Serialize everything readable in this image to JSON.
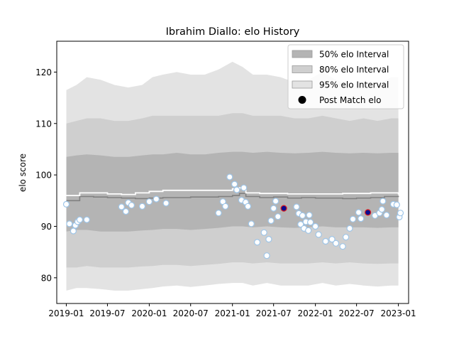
{
  "chart_data": {
    "type": "area",
    "title": "Ibrahim Diallo: elo History",
    "xlabel": "",
    "ylabel": "elo score",
    "xlim": [
      "2018-11-20",
      "2023-02-15"
    ],
    "ylim": [
      75,
      126
    ],
    "x_ticks": [
      "2019-01",
      "2019-07",
      "2020-01",
      "2020-07",
      "2021-01",
      "2021-07",
      "2022-01",
      "2022-07",
      "2023-01"
    ],
    "y_ticks": [
      80,
      90,
      100,
      110,
      120
    ],
    "grid": false,
    "legend_position": "top-right",
    "colors": {
      "band50": "#b4b4b4",
      "band80": "#cfcfcf",
      "band95": "#e3e3e3",
      "median_line": "#808080",
      "mean_line": "#ffffff",
      "point_fill": "#ffffff",
      "point_edge": "#9ec5e8",
      "highlight_fill": "#0a0a90",
      "highlight_edge": "#e02020"
    },
    "legend": [
      {
        "label": "50% elo Interval",
        "kind": "band50"
      },
      {
        "label": "80% elo Interval",
        "kind": "band80"
      },
      {
        "label": "95% elo Interval",
        "kind": "band95"
      },
      {
        "label": "Post Match elo",
        "kind": "marker"
      }
    ],
    "band_x": [
      "2019-01-01",
      "2019-02-15",
      "2019-04-01",
      "2019-06-01",
      "2019-08-01",
      "2019-10-01",
      "2019-12-01",
      "2020-01-15",
      "2020-03-01",
      "2020-05-01",
      "2020-07-01",
      "2020-09-01",
      "2020-11-01",
      "2021-01-01",
      "2021-02-15",
      "2021-04-01",
      "2021-06-01",
      "2021-08-01",
      "2021-10-01",
      "2021-12-01",
      "2022-02-01",
      "2022-04-01",
      "2022-06-01",
      "2022-08-01",
      "2022-10-01",
      "2022-12-01",
      "2023-01-01"
    ],
    "band95_upper": [
      116.5,
      117.5,
      119,
      118.5,
      117.5,
      117,
      117.5,
      119,
      119.5,
      120,
      119.5,
      119.5,
      120.5,
      122,
      121,
      119.5,
      119.5,
      119,
      118,
      118.5,
      120,
      118.5,
      117.5,
      118,
      117.5,
      119,
      119
    ],
    "band95_lower": [
      77.5,
      78,
      78,
      77.8,
      77.5,
      77.5,
      77.8,
      78,
      78.3,
      78.5,
      78.2,
      78.5,
      78.8,
      79,
      79,
      78.5,
      79,
      78.5,
      78.5,
      78.5,
      79,
      78.5,
      78.8,
      78.5,
      78.3,
      78.5,
      78.5
    ],
    "band80_upper": [
      110,
      110.5,
      111,
      111,
      110.5,
      110.5,
      111,
      111.5,
      111.5,
      111.5,
      111.5,
      111.5,
      111.5,
      112,
      112,
      111.5,
      111.5,
      111.5,
      111,
      111,
      111.5,
      111,
      110.5,
      111,
      110.5,
      111,
      111
    ],
    "band80_lower": [
      82,
      82,
      82.3,
      82,
      82,
      82,
      82.2,
      82.3,
      82.5,
      82.5,
      82.3,
      82.5,
      82.7,
      83,
      83,
      82.8,
      83,
      82.8,
      82.8,
      82.8,
      83,
      82.8,
      83,
      82.8,
      82.7,
      82.8,
      82.8
    ],
    "band50_upper": [
      103.5,
      103.8,
      104,
      103.8,
      103.5,
      103.5,
      103.8,
      104,
      104,
      104.3,
      104,
      104,
      104.3,
      104.5,
      104.5,
      104.3,
      104.5,
      104.3,
      104.2,
      104.3,
      104.5,
      104.3,
      104.2,
      104.3,
      104.2,
      104.3,
      104.3
    ],
    "band50_lower": [
      89,
      89.3,
      89.3,
      89,
      89,
      89,
      89.2,
      89.3,
      89.5,
      89.5,
      89.3,
      89.5,
      89.7,
      90,
      90,
      89.8,
      90,
      89.8,
      89.7,
      89.8,
      90,
      89.8,
      89.8,
      89.8,
      89.7,
      89.8,
      89.8
    ],
    "median_x": [
      "2019-01-01",
      "2019-03-01",
      "2019-05-01",
      "2019-07-01",
      "2019-09-01",
      "2019-11-01",
      "2020-01-01",
      "2020-03-01",
      "2020-05-01",
      "2020-07-01",
      "2020-09-01",
      "2020-11-01",
      "2021-01-01",
      "2021-02-01",
      "2021-03-01",
      "2021-05-01",
      "2021-07-01",
      "2021-09-01",
      "2021-11-01",
      "2022-01-01",
      "2022-03-01",
      "2022-05-01",
      "2022-07-01",
      "2022-09-01",
      "2022-11-01",
      "2023-01-01"
    ],
    "median_y": [
      95,
      95.8,
      95.7,
      95.6,
      95.5,
      95.4,
      95.5,
      95.6,
      95.6,
      95.7,
      95.7,
      95.8,
      96,
      96.4,
      95.8,
      95.6,
      95.7,
      95.5,
      95.6,
      95.5,
      95.5,
      95.4,
      95.5,
      95.6,
      95.8,
      95.9
    ],
    "mean_y": [
      96,
      96.5,
      96.5,
      96.3,
      96.2,
      96.5,
      96.8,
      97,
      97,
      97,
      97,
      97,
      97.3,
      97.5,
      96.5,
      96.4,
      96.4,
      96.3,
      96.3,
      96.3,
      96.3,
      96.4,
      96.4,
      96.5,
      96.5,
      96.2
    ],
    "points": [
      {
        "x": "2019-01-01",
        "y": 94.3
      },
      {
        "x": "2019-01-15",
        "y": 90.5
      },
      {
        "x": "2019-02-01",
        "y": 89.1
      },
      {
        "x": "2019-02-10",
        "y": 90.2
      },
      {
        "x": "2019-02-20",
        "y": 90.9
      },
      {
        "x": "2019-03-01",
        "y": 91.3
      },
      {
        "x": "2019-04-01",
        "y": 91.3
      },
      {
        "x": "2019-09-01",
        "y": 93.8
      },
      {
        "x": "2019-09-20",
        "y": 92.9
      },
      {
        "x": "2019-10-01",
        "y": 94.6
      },
      {
        "x": "2019-10-15",
        "y": 94.1
      },
      {
        "x": "2019-12-01",
        "y": 93.9
      },
      {
        "x": "2020-01-01",
        "y": 94.8
      },
      {
        "x": "2020-02-01",
        "y": 95.3
      },
      {
        "x": "2020-03-15",
        "y": 94.5
      },
      {
        "x": "2020-11-01",
        "y": 92.6
      },
      {
        "x": "2020-11-20",
        "y": 94.8
      },
      {
        "x": "2020-12-01",
        "y": 93.9
      },
      {
        "x": "2020-12-20",
        "y": 99.6
      },
      {
        "x": "2021-01-10",
        "y": 98.2
      },
      {
        "x": "2021-01-20",
        "y": 97.1
      },
      {
        "x": "2021-02-10",
        "y": 95.1
      },
      {
        "x": "2021-02-20",
        "y": 97.5
      },
      {
        "x": "2021-02-28",
        "y": 94.7
      },
      {
        "x": "2021-03-10",
        "y": 93.9
      },
      {
        "x": "2021-03-25",
        "y": 90.5
      },
      {
        "x": "2021-04-20",
        "y": 86.9
      },
      {
        "x": "2021-05-20",
        "y": 88.8
      },
      {
        "x": "2021-06-01",
        "y": 84.3
      },
      {
        "x": "2021-06-10",
        "y": 87.5
      },
      {
        "x": "2021-06-20",
        "y": 91.1
      },
      {
        "x": "2021-07-01",
        "y": 93.5
      },
      {
        "x": "2021-07-10",
        "y": 94.9
      },
      {
        "x": "2021-07-20",
        "y": 91.9
      },
      {
        "x": "2021-08-15",
        "y": 93.5,
        "highlight": true
      },
      {
        "x": "2021-10-10",
        "y": 93.8
      },
      {
        "x": "2021-10-20",
        "y": 92.5
      },
      {
        "x": "2021-10-28",
        "y": 90.4
      },
      {
        "x": "2021-11-05",
        "y": 92.1
      },
      {
        "x": "2021-11-12",
        "y": 89.6
      },
      {
        "x": "2021-11-20",
        "y": 90.9
      },
      {
        "x": "2021-12-01",
        "y": 89.2
      },
      {
        "x": "2021-12-05",
        "y": 92.2
      },
      {
        "x": "2021-12-10",
        "y": 90.8
      },
      {
        "x": "2022-01-01",
        "y": 90.0
      },
      {
        "x": "2022-01-15",
        "y": 88.4
      },
      {
        "x": "2022-02-15",
        "y": 87.1
      },
      {
        "x": "2022-03-15",
        "y": 87.5
      },
      {
        "x": "2022-04-01",
        "y": 86.7
      },
      {
        "x": "2022-05-01",
        "y": 86.1
      },
      {
        "x": "2022-05-15",
        "y": 87.9
      },
      {
        "x": "2022-06-01",
        "y": 89.6
      },
      {
        "x": "2022-06-15",
        "y": 91.4
      },
      {
        "x": "2022-07-10",
        "y": 92.7
      },
      {
        "x": "2022-07-20",
        "y": 91.5
      },
      {
        "x": "2022-08-20",
        "y": 92.7,
        "highlight": true
      },
      {
        "x": "2022-09-20",
        "y": 92.1
      },
      {
        "x": "2022-10-10",
        "y": 92.6
      },
      {
        "x": "2022-10-20",
        "y": 93.3
      },
      {
        "x": "2022-10-25",
        "y": 94.9
      },
      {
        "x": "2022-11-10",
        "y": 92.2
      },
      {
        "x": "2022-12-10",
        "y": 94.3
      },
      {
        "x": "2022-12-25",
        "y": 94.2
      },
      {
        "x": "2023-01-05",
        "y": 91.8
      },
      {
        "x": "2023-01-10",
        "y": 92.6
      }
    ]
  }
}
